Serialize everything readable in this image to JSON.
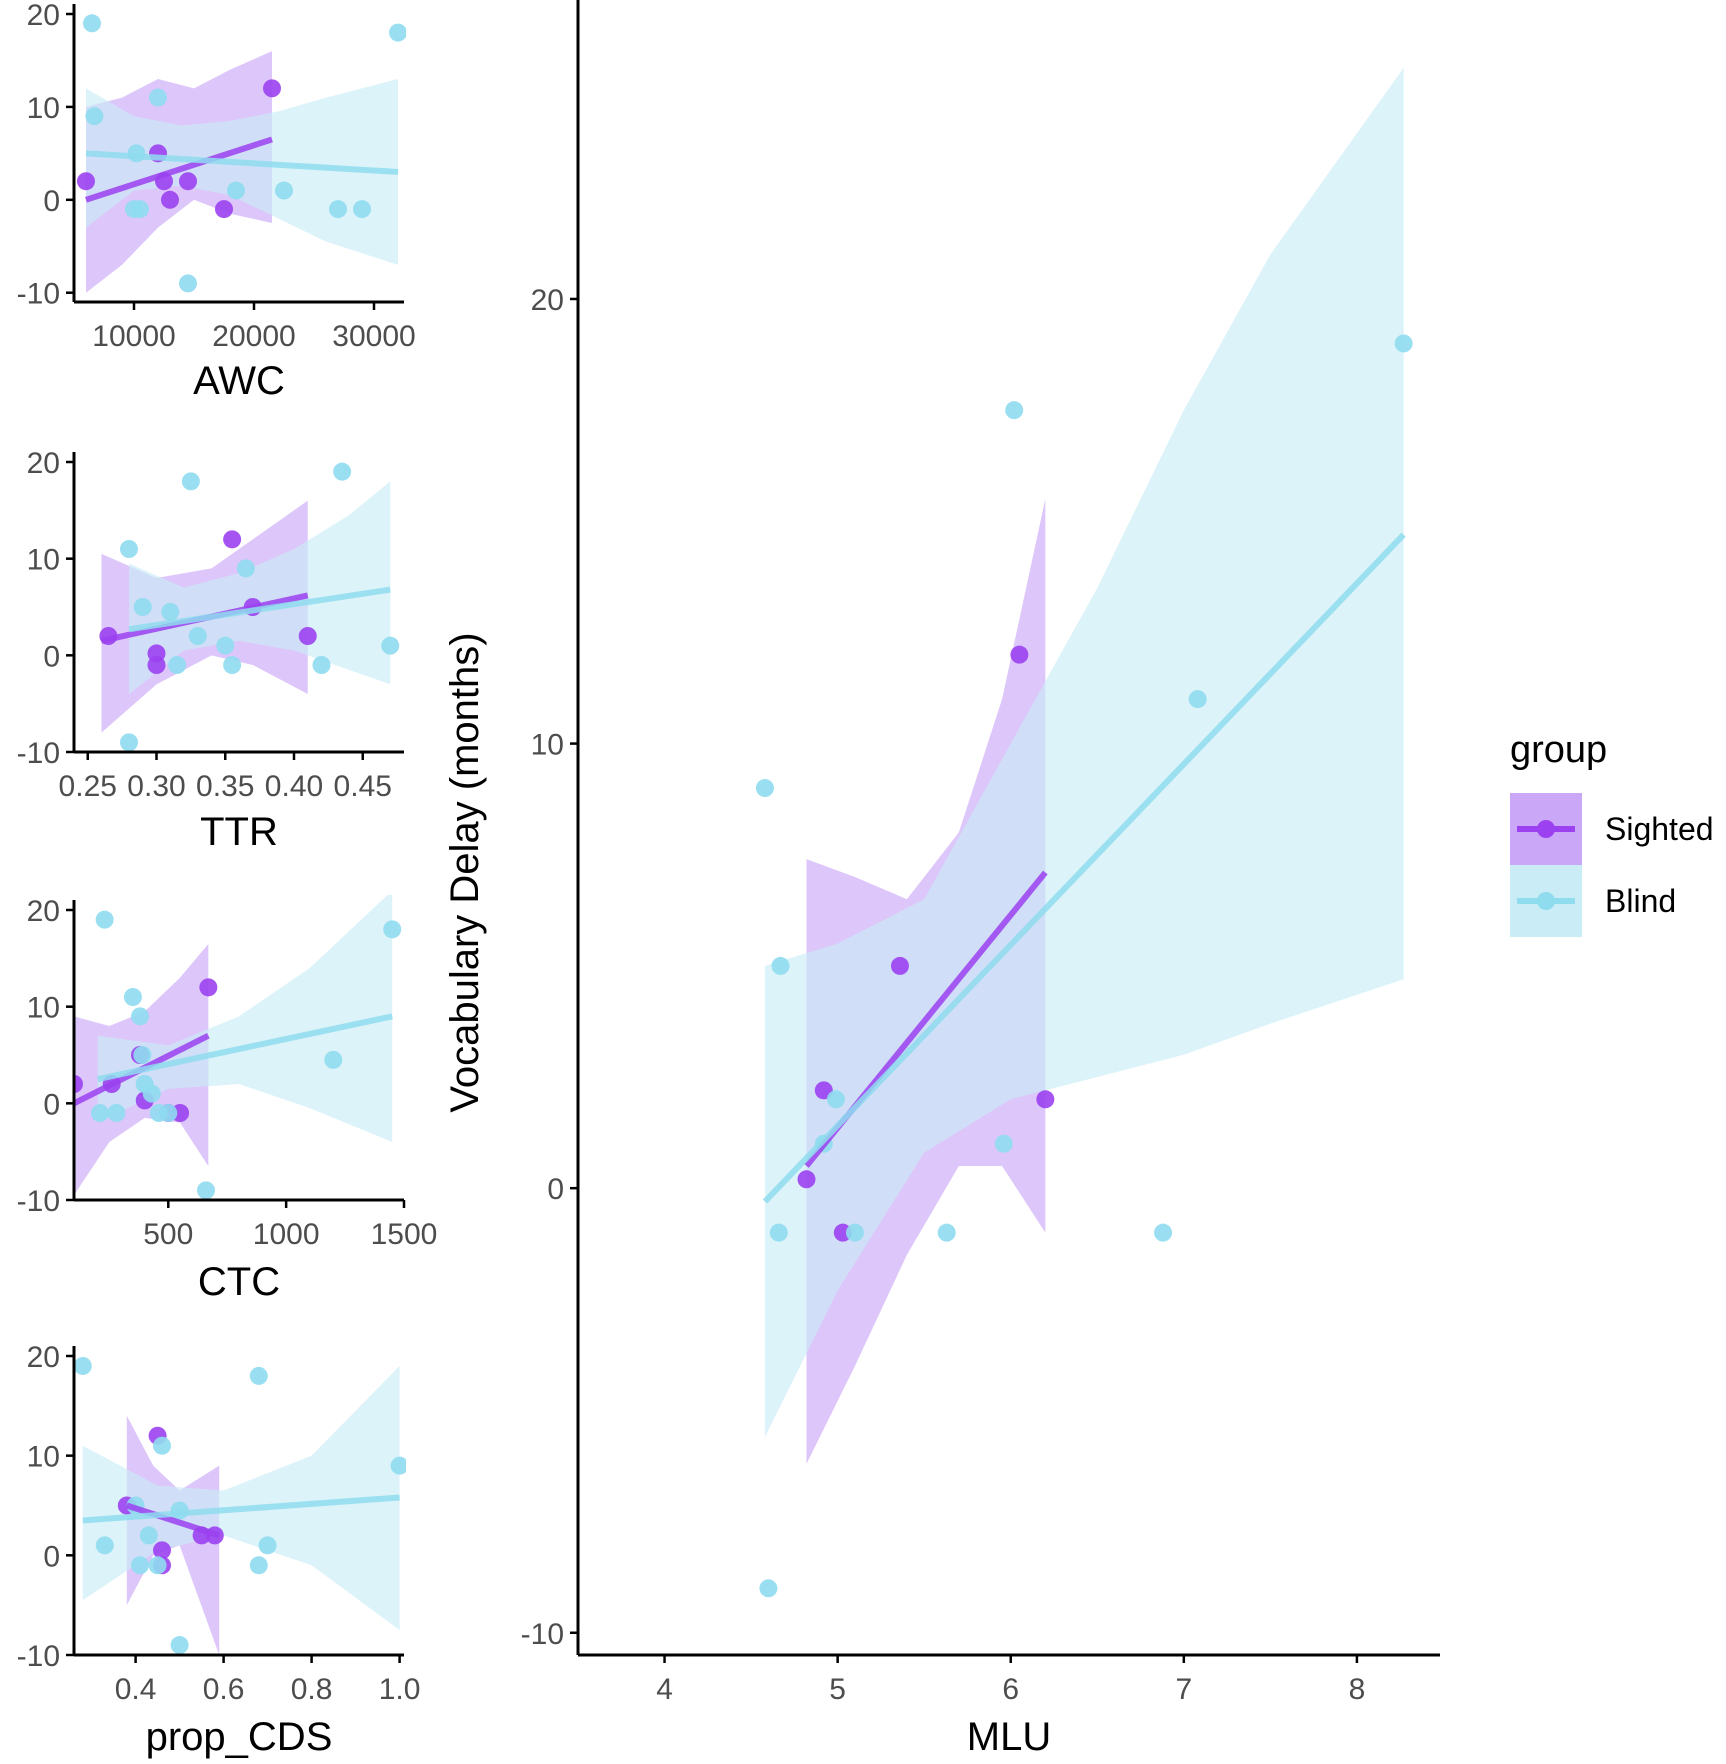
{
  "colors": {
    "sighted": "#9b41f0",
    "sighted_band": "#cba8f7",
    "blind": "#8fdcef",
    "blind_band": "#c9ecf6",
    "axis": "#000000",
    "tick_text": "#4d4d4d"
  },
  "legend": {
    "title": "group",
    "items": [
      {
        "key": "sighted",
        "label": "Sighted"
      },
      {
        "key": "blind",
        "label": "Blind"
      }
    ]
  },
  "chart_data": [
    {
      "id": "awc",
      "type": "scatter",
      "xlabel": "AWC",
      "ylabel": "",
      "xlim": [
        5000,
        32500
      ],
      "ylim": [
        -11,
        20
      ],
      "xticks": [
        10000,
        20000,
        30000
      ],
      "xtick_labels": [
        "10000",
        "20000",
        "30000"
      ],
      "yticks": [
        -10,
        0,
        10,
        20
      ],
      "ytick_labels": [
        "-10",
        "0",
        "10",
        "20"
      ],
      "series": [
        {
          "name": "Sighted",
          "key": "sighted",
          "points": [
            [
              6000,
              2
            ],
            [
              12000,
              5
            ],
            [
              12500,
              2
            ],
            [
              14500,
              2
            ],
            [
              13000,
              0
            ],
            [
              17500,
              -1
            ],
            [
              21500,
              12
            ]
          ],
          "fit": [
            [
              6000,
              0
            ],
            [
              21500,
              6.5
            ]
          ],
          "band": [
            [
              6000,
              -10,
              10
            ],
            [
              9000,
              -7,
              11
            ],
            [
              12000,
              -3,
              13
            ],
            [
              15000,
              0,
              12
            ],
            [
              18000,
              -1.5,
              14
            ],
            [
              21500,
              -2.5,
              16
            ]
          ]
        },
        {
          "name": "Blind",
          "key": "blind",
          "points": [
            [
              6500,
              19
            ],
            [
              6700,
              9
            ],
            [
              12000,
              11
            ],
            [
              10000,
              -1
            ],
            [
              10500,
              -1
            ],
            [
              10200,
              5
            ],
            [
              14500,
              -9
            ],
            [
              18500,
              1
            ],
            [
              22500,
              1
            ],
            [
              27000,
              -1
            ],
            [
              29000,
              -1
            ],
            [
              32000,
              18
            ]
          ],
          "fit": [
            [
              6000,
              5
            ],
            [
              32000,
              3
            ]
          ],
          "band": [
            [
              6000,
              -3,
              12
            ],
            [
              10000,
              1,
              9
            ],
            [
              14000,
              1.5,
              8
            ],
            [
              18000,
              0.5,
              8.5
            ],
            [
              22000,
              -2,
              9.5
            ],
            [
              26000,
              -4.5,
              11
            ],
            [
              32000,
              -7,
              13
            ]
          ]
        }
      ]
    },
    {
      "id": "ttr",
      "type": "scatter",
      "xlabel": "TTR",
      "ylabel": "",
      "xlim": [
        0.24,
        0.48
      ],
      "ylim": [
        -10,
        20
      ],
      "xticks": [
        0.25,
        0.3,
        0.35,
        0.4,
        0.45
      ],
      "xtick_labels": [
        "0.25",
        "0.30",
        "0.35",
        "0.40",
        "0.45"
      ],
      "yticks": [
        -10,
        0,
        10,
        20
      ],
      "ytick_labels": [
        "-10",
        "0",
        "10",
        "20"
      ],
      "series": [
        {
          "name": "Sighted",
          "key": "sighted",
          "points": [
            [
              0.265,
              2
            ],
            [
              0.3,
              0.2
            ],
            [
              0.3,
              -1
            ],
            [
              0.355,
              12
            ],
            [
              0.37,
              5
            ],
            [
              0.41,
              2
            ]
          ],
          "fit": [
            [
              0.26,
              1.5
            ],
            [
              0.41,
              6.2
            ]
          ],
          "band": [
            [
              0.26,
              -8,
              10.5
            ],
            [
              0.3,
              -3,
              8
            ],
            [
              0.34,
              0,
              9
            ],
            [
              0.37,
              -1,
              12
            ],
            [
              0.41,
              -4,
              16
            ]
          ]
        },
        {
          "name": "Blind",
          "key": "blind",
          "points": [
            [
              0.28,
              11
            ],
            [
              0.28,
              -9
            ],
            [
              0.29,
              5
            ],
            [
              0.31,
              4.5
            ],
            [
              0.315,
              -1
            ],
            [
              0.325,
              18
            ],
            [
              0.33,
              2
            ],
            [
              0.35,
              1
            ],
            [
              0.355,
              -1
            ],
            [
              0.365,
              9
            ],
            [
              0.42,
              -1
            ],
            [
              0.435,
              19
            ],
            [
              0.47,
              1
            ]
          ],
          "fit": [
            [
              0.28,
              2.7
            ],
            [
              0.47,
              6.8
            ]
          ],
          "band": [
            [
              0.28,
              -4,
              9.5
            ],
            [
              0.32,
              0.5,
              7
            ],
            [
              0.36,
              1.5,
              8.5
            ],
            [
              0.4,
              0.5,
              11
            ],
            [
              0.44,
              -1.5,
              14.5
            ],
            [
              0.47,
              -3,
              18
            ]
          ]
        }
      ]
    },
    {
      "id": "ctc",
      "type": "scatter",
      "xlabel": "CTC",
      "ylabel": "",
      "xlim": [
        100,
        1500
      ],
      "ylim": [
        -10,
        20
      ],
      "xticks": [
        500,
        1000,
        1500
      ],
      "xtick_labels": [
        "500",
        "1000",
        "1500"
      ],
      "yticks": [
        -10,
        0,
        10,
        20
      ],
      "ytick_labels": [
        "-10",
        "0",
        "10",
        "20"
      ],
      "series": [
        {
          "name": "Sighted",
          "key": "sighted",
          "points": [
            [
              100,
              2
            ],
            [
              260,
              2
            ],
            [
              380,
              5
            ],
            [
              400,
              0.3
            ],
            [
              500,
              -1
            ],
            [
              550,
              -1
            ],
            [
              670,
              12
            ]
          ],
          "fit": [
            [
              100,
              0
            ],
            [
              670,
              7
            ]
          ],
          "band": [
            [
              100,
              -9.5,
              9
            ],
            [
              250,
              -4,
              8
            ],
            [
              400,
              -1.5,
              9.5
            ],
            [
              550,
              -2,
              13
            ],
            [
              670,
              -6.5,
              16.5
            ]
          ]
        },
        {
          "name": "Blind",
          "key": "blind",
          "points": [
            [
              230,
              19
            ],
            [
              210,
              -1
            ],
            [
              280,
              -1
            ],
            [
              350,
              11
            ],
            [
              380,
              9
            ],
            [
              390,
              5
            ],
            [
              400,
              2
            ],
            [
              430,
              1
            ],
            [
              460,
              -1
            ],
            [
              500,
              -1
            ],
            [
              660,
              -9
            ],
            [
              1200,
              4.5
            ],
            [
              1450,
              18
            ]
          ],
          "fit": [
            [
              200,
              2.5
            ],
            [
              1450,
              9
            ]
          ],
          "band": [
            [
              200,
              -2,
              7
            ],
            [
              500,
              1.5,
              6
            ],
            [
              800,
              2,
              9
            ],
            [
              1100,
              -0.5,
              14
            ],
            [
              1450,
              -4,
              22
            ]
          ]
        }
      ]
    },
    {
      "id": "prop_cds",
      "type": "scatter",
      "xlabel": "prop_CDS",
      "ylabel": "",
      "xlim": [
        0.26,
        1.01
      ],
      "ylim": [
        -10,
        20
      ],
      "xticks": [
        0.4,
        0.6,
        0.8,
        1.0
      ],
      "xtick_labels": [
        "0.4",
        "0.6",
        "0.8",
        "1.0"
      ],
      "yticks": [
        -10,
        0,
        10,
        20
      ],
      "ytick_labels": [
        "-10",
        "0",
        "10",
        "20"
      ],
      "series": [
        {
          "name": "Sighted",
          "key": "sighted",
          "points": [
            [
              0.38,
              5
            ],
            [
              0.45,
              12
            ],
            [
              0.46,
              0.5
            ],
            [
              0.46,
              -1
            ],
            [
              0.55,
              2
            ],
            [
              0.58,
              2
            ]
          ],
          "fit": [
            [
              0.38,
              5
            ],
            [
              0.59,
              2
            ]
          ],
          "band": [
            [
              0.38,
              -5,
              14
            ],
            [
              0.44,
              0,
              9
            ],
            [
              0.5,
              1,
              6.5
            ],
            [
              0.59,
              -10,
              9
            ]
          ]
        },
        {
          "name": "Blind",
          "key": "blind",
          "points": [
            [
              0.28,
              19
            ],
            [
              0.33,
              1
            ],
            [
              0.4,
              5
            ],
            [
              0.41,
              -1
            ],
            [
              0.43,
              2
            ],
            [
              0.45,
              -1
            ],
            [
              0.46,
              11
            ],
            [
              0.5,
              4.5
            ],
            [
              0.5,
              -9
            ],
            [
              0.68,
              18
            ],
            [
              0.68,
              -1
            ],
            [
              0.7,
              1
            ],
            [
              1.0,
              9
            ]
          ],
          "fit": [
            [
              0.28,
              3.5
            ],
            [
              1.0,
              5.8
            ]
          ],
          "band": [
            [
              0.28,
              -4.5,
              11
            ],
            [
              0.45,
              0.5,
              7
            ],
            [
              0.6,
              2,
              6.5
            ],
            [
              0.8,
              -1,
              10
            ],
            [
              1.0,
              -7.5,
              19
            ]
          ]
        }
      ]
    },
    {
      "id": "mlu",
      "type": "scatter",
      "xlabel": "MLU",
      "ylabel": "Vocabulary Delay (months)",
      "xlim": [
        3.5,
        8.48
      ],
      "ylim": [
        -10.5,
        26.5
      ],
      "xticks": [
        4,
        5,
        6,
        7,
        8
      ],
      "xtick_labels": [
        "4",
        "5",
        "6",
        "7",
        "8"
      ],
      "yticks": [
        -10,
        0,
        10,
        20
      ],
      "ytick_labels": [
        "-10",
        "0",
        "10",
        "20"
      ],
      "series": [
        {
          "name": "Sighted",
          "key": "sighted",
          "points": [
            [
              4.82,
              0.2
            ],
            [
              4.92,
              2.2
            ],
            [
              5.03,
              -1
            ],
            [
              5.36,
              5
            ],
            [
              6.05,
              12
            ],
            [
              6.2,
              2
            ]
          ],
          "fit": [
            [
              4.82,
              0.5
            ],
            [
              6.2,
              7.1
            ]
          ],
          "band": [
            [
              4.82,
              -6.2,
              7.4
            ],
            [
              5.1,
              -4,
              7
            ],
            [
              5.4,
              -1.5,
              6.5
            ],
            [
              5.7,
              0.5,
              8
            ],
            [
              5.95,
              0.5,
              11
            ],
            [
              6.2,
              -1,
              15.5
            ]
          ]
        },
        {
          "name": "Blind",
          "key": "blind",
          "points": [
            [
              4.58,
              9
            ],
            [
              4.6,
              -9
            ],
            [
              4.66,
              -1
            ],
            [
              4.67,
              5
            ],
            [
              4.92,
              1
            ],
            [
              4.99,
              2
            ],
            [
              5.1,
              -1
            ],
            [
              5.63,
              -1
            ],
            [
              5.96,
              1
            ],
            [
              6.02,
              17.5
            ],
            [
              6.88,
              -1
            ],
            [
              7.08,
              11
            ],
            [
              8.27,
              19
            ]
          ],
          "fit": [
            [
              4.58,
              -0.3
            ],
            [
              8.27,
              14.7
            ]
          ],
          "band": [
            [
              4.58,
              -5.6,
              5
            ],
            [
              5.0,
              -2.3,
              5.5
            ],
            [
              5.5,
              0.8,
              6.5
            ],
            [
              6.0,
              2,
              10
            ],
            [
              6.5,
              2.5,
              13.5
            ],
            [
              7.0,
              3,
              17.5
            ],
            [
              7.5,
              3.7,
              21
            ],
            [
              8.27,
              4.7,
              25.2
            ]
          ]
        }
      ]
    }
  ]
}
